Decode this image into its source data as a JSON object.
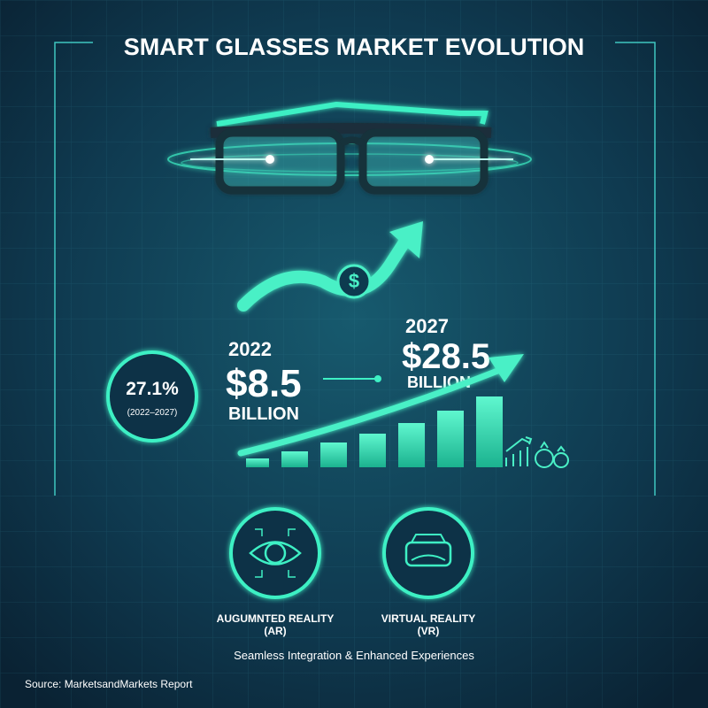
{
  "header": {
    "title": "SMART GLASSES MARKET EVOLUTION"
  },
  "growth": {
    "rate": "27.1%",
    "period": "(2022–2027)"
  },
  "market": [
    {
      "year": "2022",
      "value": "$8.5",
      "unit": "BILLION"
    },
    {
      "year": "2027",
      "value": "$28.5",
      "unit": "BILLION"
    }
  ],
  "technologies": [
    {
      "label": "AUGUMNTED REALITY",
      "abbr": "(AR)"
    },
    {
      "label": "VIRTUAL REALITY",
      "abbr": "(VR)"
    }
  ],
  "tagline": "Seamless Integration & Enhanced Experiences",
  "source": "Source: MarketsandMarkets Report"
}
